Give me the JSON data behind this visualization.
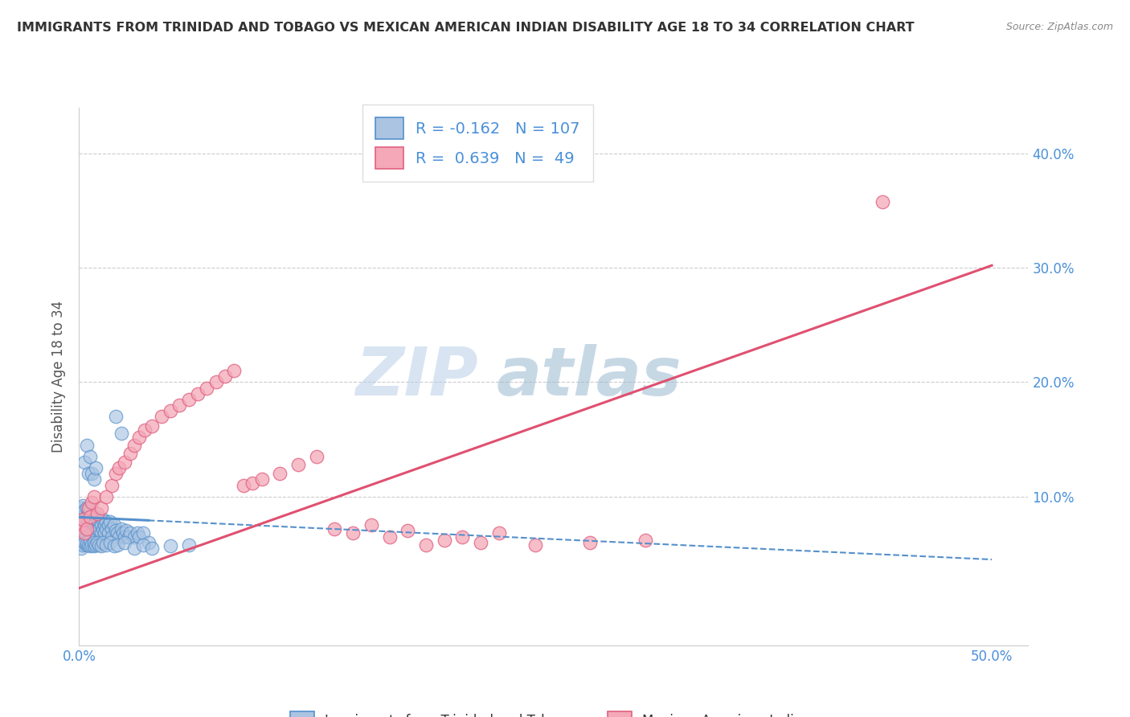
{
  "title": "IMMIGRANTS FROM TRINIDAD AND TOBAGO VS MEXICAN AMERICAN INDIAN DISABILITY AGE 18 TO 34 CORRELATION CHART",
  "source": "Source: ZipAtlas.com",
  "ylabel": "Disability Age 18 to 34",
  "xlim": [
    0.0,
    0.52
  ],
  "ylim": [
    -0.03,
    0.44
  ],
  "xticks": [
    0.0,
    0.1,
    0.2,
    0.3,
    0.4,
    0.5
  ],
  "xticklabels": [
    "0.0%",
    "",
    "",
    "",
    "",
    "50.0%"
  ],
  "yticks": [
    0.0,
    0.1,
    0.2,
    0.3,
    0.4
  ],
  "yticklabels_right": [
    "",
    "10.0%",
    "20.0%",
    "30.0%",
    "40.0%"
  ],
  "blue_R": -0.162,
  "blue_N": 107,
  "pink_R": 0.639,
  "pink_N": 49,
  "blue_color": "#aac4e2",
  "pink_color": "#f4a8b8",
  "blue_edge_color": "#5590cc",
  "pink_edge_color": "#e06080",
  "blue_line_color": "#5590cc",
  "pink_line_color": "#e05070",
  "legend_blue_label": "R = -0.162   N = 107",
  "legend_pink_label": "R =  0.639   N =  49",
  "bottom_legend_blue": "Immigrants from Trinidad and Tobago",
  "bottom_legend_pink": "Mexican American Indians",
  "blue_line_start_y": 0.082,
  "blue_line_end_y": 0.045,
  "pink_line_start_y": 0.02,
  "pink_line_end_y": 0.302,
  "blue_scatter_x": [
    0.001,
    0.001,
    0.001,
    0.001,
    0.002,
    0.002,
    0.002,
    0.002,
    0.002,
    0.003,
    0.003,
    0.003,
    0.003,
    0.004,
    0.004,
    0.004,
    0.004,
    0.005,
    0.005,
    0.005,
    0.005,
    0.005,
    0.006,
    0.006,
    0.006,
    0.006,
    0.007,
    0.007,
    0.007,
    0.007,
    0.008,
    0.008,
    0.008,
    0.009,
    0.009,
    0.009,
    0.01,
    0.01,
    0.01,
    0.01,
    0.011,
    0.011,
    0.012,
    0.012,
    0.013,
    0.013,
    0.014,
    0.014,
    0.015,
    0.015,
    0.016,
    0.016,
    0.017,
    0.018,
    0.018,
    0.019,
    0.02,
    0.021,
    0.022,
    0.023,
    0.024,
    0.025,
    0.026,
    0.027,
    0.028,
    0.03,
    0.032,
    0.033,
    0.035,
    0.038,
    0.001,
    0.001,
    0.002,
    0.002,
    0.003,
    0.004,
    0.004,
    0.005,
    0.006,
    0.006,
    0.007,
    0.008,
    0.008,
    0.009,
    0.01,
    0.011,
    0.012,
    0.013,
    0.015,
    0.017,
    0.019,
    0.021,
    0.025,
    0.03,
    0.035,
    0.04,
    0.05,
    0.06,
    0.02,
    0.023,
    0.003,
    0.004,
    0.005,
    0.006,
    0.007,
    0.008,
    0.009
  ],
  "blue_scatter_y": [
    0.075,
    0.082,
    0.065,
    0.09,
    0.078,
    0.085,
    0.07,
    0.06,
    0.092,
    0.08,
    0.073,
    0.088,
    0.065,
    0.082,
    0.075,
    0.068,
    0.09,
    0.078,
    0.083,
    0.07,
    0.065,
    0.088,
    0.075,
    0.082,
    0.068,
    0.09,
    0.077,
    0.083,
    0.07,
    0.065,
    0.08,
    0.075,
    0.068,
    0.082,
    0.077,
    0.065,
    0.075,
    0.08,
    0.07,
    0.065,
    0.078,
    0.072,
    0.075,
    0.068,
    0.08,
    0.072,
    0.075,
    0.068,
    0.078,
    0.072,
    0.075,
    0.068,
    0.078,
    0.072,
    0.065,
    0.075,
    0.07,
    0.068,
    0.065,
    0.072,
    0.068,
    0.065,
    0.07,
    0.065,
    0.068,
    0.065,
    0.068,
    0.065,
    0.068,
    0.06,
    0.06,
    0.055,
    0.062,
    0.058,
    0.06,
    0.058,
    0.06,
    0.058,
    0.057,
    0.062,
    0.058,
    0.057,
    0.06,
    0.058,
    0.06,
    0.058,
    0.057,
    0.06,
    0.058,
    0.06,
    0.057,
    0.058,
    0.06,
    0.055,
    0.058,
    0.055,
    0.057,
    0.058,
    0.17,
    0.155,
    0.13,
    0.145,
    0.12,
    0.135,
    0.12,
    0.115,
    0.125
  ],
  "pink_scatter_x": [
    0.001,
    0.002,
    0.003,
    0.004,
    0.005,
    0.006,
    0.007,
    0.008,
    0.01,
    0.012,
    0.015,
    0.018,
    0.02,
    0.022,
    0.025,
    0.028,
    0.03,
    0.033,
    0.036,
    0.04,
    0.045,
    0.05,
    0.055,
    0.06,
    0.065,
    0.07,
    0.075,
    0.08,
    0.085,
    0.09,
    0.095,
    0.1,
    0.11,
    0.12,
    0.13,
    0.14,
    0.15,
    0.16,
    0.17,
    0.18,
    0.19,
    0.2,
    0.21,
    0.22,
    0.23,
    0.25,
    0.28,
    0.31,
    0.44
  ],
  "pink_scatter_y": [
    0.075,
    0.08,
    0.068,
    0.072,
    0.09,
    0.082,
    0.095,
    0.1,
    0.085,
    0.09,
    0.1,
    0.11,
    0.12,
    0.125,
    0.13,
    0.138,
    0.145,
    0.152,
    0.158,
    0.162,
    0.17,
    0.175,
    0.18,
    0.185,
    0.19,
    0.195,
    0.2,
    0.205,
    0.21,
    0.11,
    0.112,
    0.115,
    0.12,
    0.128,
    0.135,
    0.072,
    0.068,
    0.075,
    0.065,
    0.07,
    0.058,
    0.062,
    0.065,
    0.06,
    0.068,
    0.058,
    0.06,
    0.062,
    0.358
  ]
}
